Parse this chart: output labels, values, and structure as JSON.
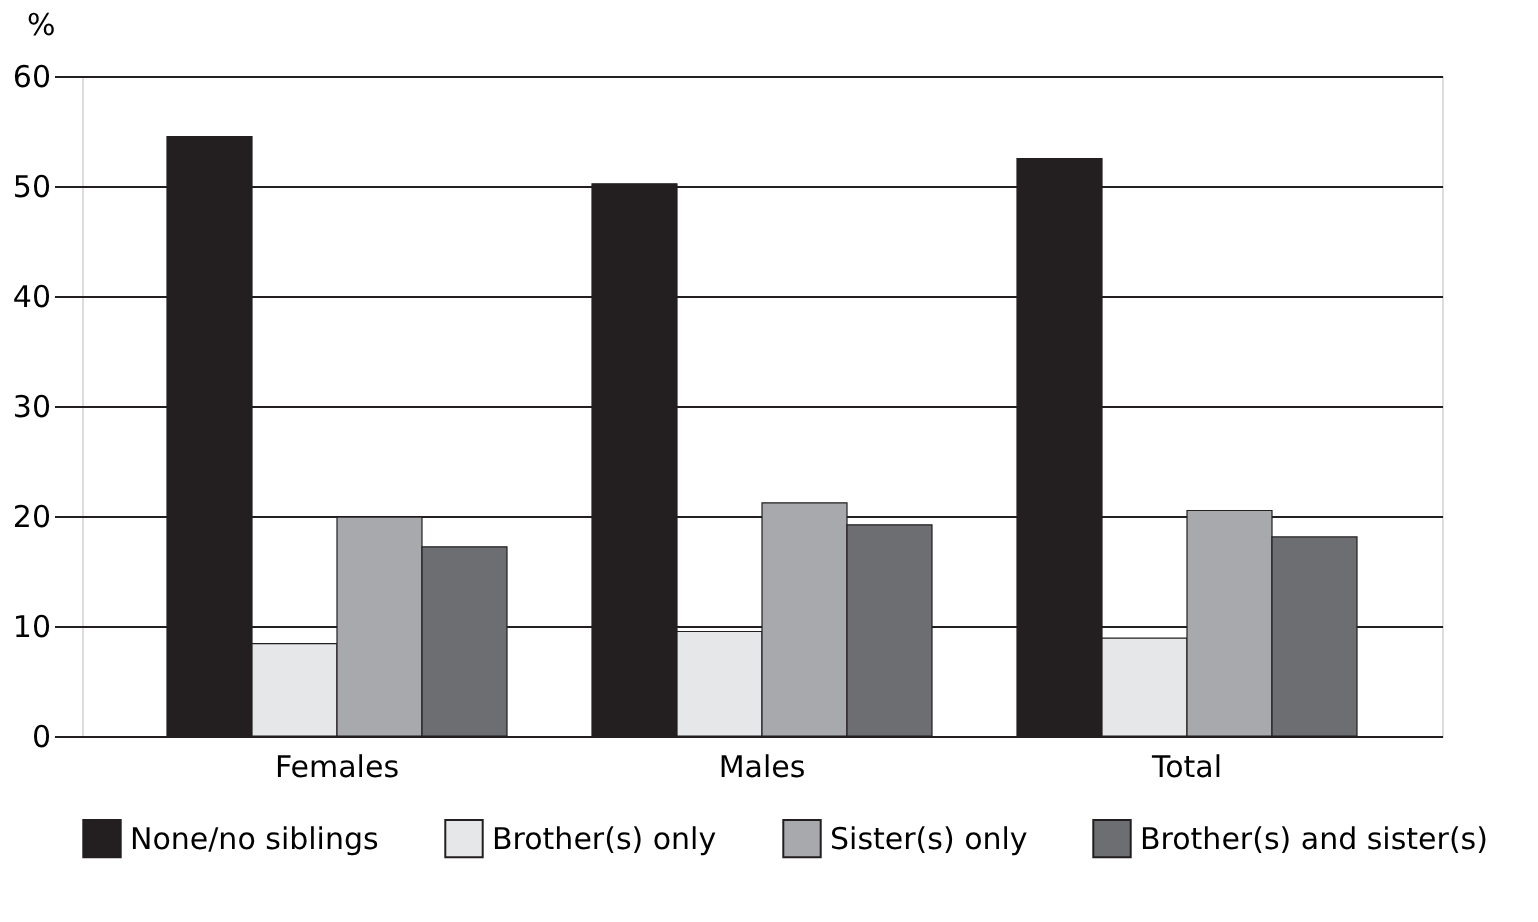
{
  "chart_data": {
    "type": "bar",
    "ylabel": "%",
    "categories": [
      "Females",
      "Males",
      "Total"
    ],
    "series": [
      {
        "name": "None/no siblings",
        "color": "#231f20",
        "values": [
          54.5,
          50.2,
          52.5
        ]
      },
      {
        "name": "Brother(s) only",
        "color": "#e6e7e8",
        "values": [
          8.4,
          9.5,
          8.9
        ]
      },
      {
        "name": "Sister(s) only",
        "color": "#a7a9ac",
        "values": [
          19.9,
          21.2,
          20.5
        ]
      },
      {
        "name": "Brother(s) and sister(s)",
        "color": "#6d6e71",
        "values": [
          17.2,
          19.2,
          18.1
        ]
      }
    ],
    "ylim": [
      0,
      60
    ],
    "yticks": [
      0,
      10,
      20,
      30,
      40,
      50,
      60
    ],
    "grid": "y",
    "legend": "bottom"
  }
}
